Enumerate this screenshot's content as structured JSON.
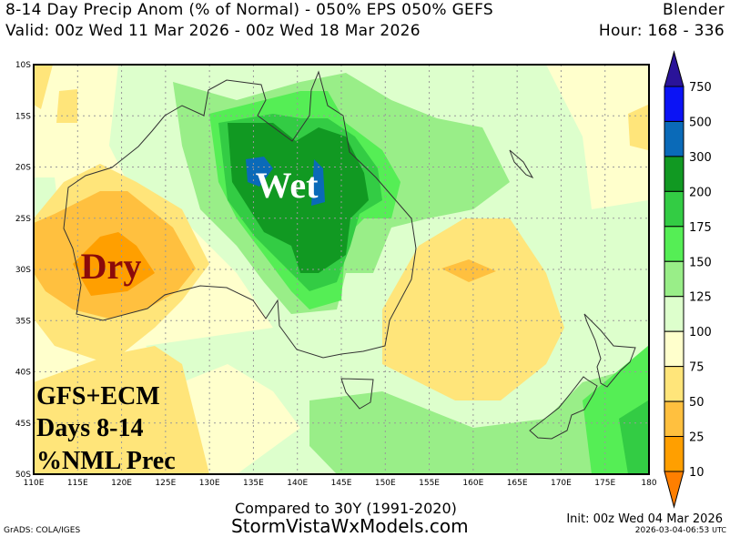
{
  "header": {
    "title": "8-14 Day Precip Anom (% of Normal) - 050% EPS 050% GEFS",
    "model": "Blender",
    "valid": "Valid: 00z Wed 11 Mar 2026 - 00z Wed 18 Mar 2026",
    "hour": "Hour: 168 - 336"
  },
  "map": {
    "lat_labels": [
      "10S",
      "15S",
      "20S",
      "25S",
      "30S",
      "35S",
      "40S",
      "45S",
      "50S"
    ],
    "lon_labels": [
      "110E",
      "115E",
      "120E",
      "125E",
      "130E",
      "135E",
      "140E",
      "145E",
      "150E",
      "155E",
      "160E",
      "165E",
      "170E",
      "175E",
      "180"
    ],
    "annotations": {
      "wet": "Wet",
      "dry": "Dry",
      "line1": "GFS+ECM",
      "line2": "Days 8-14",
      "line3": "%NML Prec"
    },
    "annotation_colors": {
      "wet": "#ffffff",
      "wet_outline": "#0a6ab8",
      "dry": "#8b0a0a"
    }
  },
  "colorbar": {
    "labels": [
      "750",
      "500",
      "300",
      "200",
      "175",
      "150",
      "125",
      "100",
      "75",
      "50",
      "25",
      "10"
    ],
    "colors_top_to_bottom": [
      "#2a1399",
      "#0b13f5",
      "#0a6ab8",
      "#119922",
      "#33cc44",
      "#55ee55",
      "#99ee88",
      "#ddffcc",
      "#ffffcc",
      "#ffe57a",
      "#ffc03f",
      "#ff9f00",
      "#ff7f00"
    ]
  },
  "footer": {
    "compared": "Compared to 30Y (1991-2020)",
    "site": "StormVistaWxModels.com",
    "grads": "GrADS: COLA/IGES",
    "init": "Init: 00z Wed 04 Mar 2026",
    "timestamp": "2026-03-04-06:53",
    "tz": "UTC"
  }
}
